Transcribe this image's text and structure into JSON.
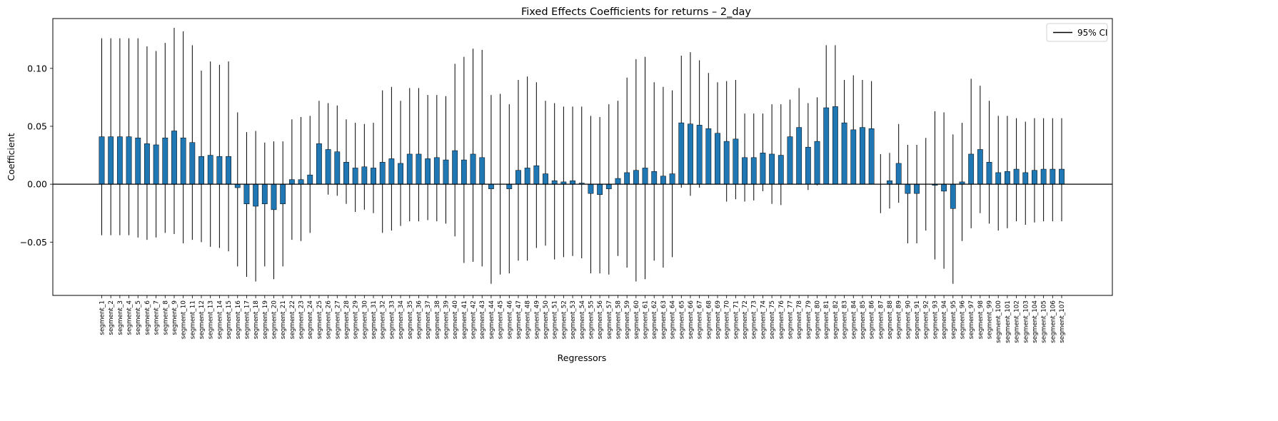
{
  "chart_data": {
    "type": "bar",
    "title": "Fixed Effects Coefficients for returns – 2_day",
    "xlabel": "Regressors",
    "ylabel": "Coefficient",
    "ylim": [
      -0.096,
      0.143
    ],
    "yticks": [
      -0.05,
      0.0,
      0.05,
      0.1
    ],
    "ytick_labels": [
      "−0.05",
      "0.00",
      "0.05",
      "0.10"
    ],
    "grid": false,
    "legend": {
      "placement": "top-right",
      "entries": [
        "95% CI"
      ]
    },
    "colors": {
      "bar": "#1f77b4",
      "errorbar": "#000000",
      "zero_line": "#000000"
    },
    "categories": [
      "segment_1",
      "segment_2",
      "segment_3",
      "segment_4",
      "segment_5",
      "segment_6",
      "segment_7",
      "segment_8",
      "segment_9",
      "segment_10",
      "segment_11",
      "segment_12",
      "segment_13",
      "segment_14",
      "segment_15",
      "segment_16",
      "segment_17",
      "segment_18",
      "segment_19",
      "segment_20",
      "segment_21",
      "segment_22",
      "segment_23",
      "segment_24",
      "segment_25",
      "segment_26",
      "segment_27",
      "segment_28",
      "segment_29",
      "segment_30",
      "segment_31",
      "segment_32",
      "segment_33",
      "segment_34",
      "segment_35",
      "segment_36",
      "segment_37",
      "segment_38",
      "segment_39",
      "segment_40",
      "segment_41",
      "segment_42",
      "segment_43",
      "segment_44",
      "segment_45",
      "segment_46",
      "segment_47",
      "segment_48",
      "segment_49",
      "segment_50",
      "segment_51",
      "segment_52",
      "segment_53",
      "segment_54",
      "segment_55",
      "segment_56",
      "segment_57",
      "segment_58",
      "segment_59",
      "segment_60",
      "segment_61",
      "segment_62",
      "segment_63",
      "segment_64",
      "segment_65",
      "segment_66",
      "segment_67",
      "segment_68",
      "segment_69",
      "segment_70",
      "segment_71",
      "segment_72",
      "segment_73",
      "segment_74",
      "segment_75",
      "segment_76",
      "segment_77",
      "segment_78",
      "segment_79",
      "segment_80",
      "segment_81",
      "segment_82",
      "segment_83",
      "segment_84",
      "segment_85",
      "segment_86",
      "segment_87",
      "segment_88",
      "segment_89",
      "segment_90",
      "segment_91",
      "segment_92",
      "segment_93",
      "segment_94",
      "segment_95",
      "segment_96",
      "segment_97",
      "segment_98",
      "segment_99",
      "segment_100",
      "segment_101",
      "segment_102",
      "segment_103",
      "segment_104",
      "segment_105",
      "segment_106",
      "segment_107"
    ],
    "values": [
      0.041,
      0.041,
      0.041,
      0.041,
      0.04,
      0.035,
      0.034,
      0.04,
      0.046,
      0.04,
      0.036,
      0.024,
      0.025,
      0.024,
      0.024,
      -0.003,
      -0.017,
      -0.019,
      -0.017,
      -0.022,
      -0.017,
      0.004,
      0.004,
      0.008,
      0.035,
      0.03,
      0.028,
      0.019,
      0.014,
      0.015,
      0.014,
      0.019,
      0.022,
      0.018,
      0.026,
      0.026,
      0.022,
      0.023,
      0.021,
      0.029,
      0.021,
      0.026,
      0.023,
      -0.004,
      0.0,
      -0.004,
      0.012,
      0.014,
      0.016,
      0.009,
      0.003,
      0.002,
      0.003,
      0.001,
      -0.008,
      -0.009,
      -0.004,
      0.005,
      0.01,
      0.012,
      0.014,
      0.011,
      0.007,
      0.009,
      0.053,
      0.052,
      0.051,
      0.048,
      0.044,
      0.037,
      0.039,
      0.023,
      0.023,
      0.027,
      0.026,
      0.025,
      0.041,
      0.049,
      0.032,
      0.037,
      0.066,
      0.067,
      0.053,
      0.047,
      0.049,
      0.048,
      0.0,
      0.003,
      0.018,
      -0.008,
      -0.008,
      0.0,
      -0.001,
      -0.006,
      -0.021,
      0.002,
      0.026,
      0.03,
      0.019,
      0.01,
      0.011,
      0.013,
      0.01,
      0.012,
      0.013,
      0.013,
      0.013
    ],
    "ci_lower": [
      -0.044,
      -0.044,
      -0.044,
      -0.044,
      -0.046,
      -0.048,
      -0.046,
      -0.042,
      -0.043,
      -0.051,
      -0.048,
      -0.05,
      -0.054,
      -0.055,
      -0.058,
      -0.071,
      -0.08,
      -0.084,
      -0.071,
      -0.082,
      -0.071,
      -0.048,
      -0.049,
      -0.042,
      0.0,
      -0.009,
      -0.01,
      -0.017,
      -0.024,
      -0.022,
      -0.025,
      -0.042,
      -0.04,
      -0.036,
      -0.032,
      -0.032,
      -0.031,
      -0.032,
      -0.034,
      -0.045,
      -0.068,
      -0.067,
      -0.071,
      -0.086,
      -0.078,
      -0.077,
      -0.066,
      -0.066,
      -0.055,
      -0.053,
      -0.065,
      -0.063,
      -0.062,
      -0.064,
      -0.077,
      -0.077,
      -0.078,
      -0.062,
      -0.072,
      -0.084,
      -0.082,
      -0.066,
      -0.072,
      -0.063,
      -0.003,
      -0.01,
      -0.003,
      0.0,
      0.001,
      -0.015,
      -0.013,
      -0.015,
      -0.014,
      -0.006,
      -0.017,
      -0.018,
      0.008,
      0.014,
      -0.005,
      -0.001,
      0.012,
      0.014,
      0.017,
      0.0,
      0.008,
      0.007,
      -0.025,
      -0.021,
      -0.016,
      -0.051,
      -0.051,
      -0.04,
      -0.065,
      -0.073,
      -0.086,
      -0.049,
      -0.038,
      -0.025,
      -0.034,
      -0.04,
      -0.038,
      -0.032,
      -0.035,
      -0.033,
      -0.032,
      -0.032,
      -0.032
    ],
    "ci_upper": [
      0.126,
      0.126,
      0.126,
      0.126,
      0.126,
      0.119,
      0.115,
      0.122,
      0.135,
      0.132,
      0.12,
      0.098,
      0.106,
      0.103,
      0.106,
      0.062,
      0.045,
      0.046,
      0.036,
      0.037,
      0.037,
      0.056,
      0.058,
      0.059,
      0.072,
      0.07,
      0.068,
      0.056,
      0.053,
      0.052,
      0.053,
      0.081,
      0.084,
      0.072,
      0.083,
      0.083,
      0.077,
      0.077,
      0.076,
      0.104,
      0.11,
      0.117,
      0.116,
      0.077,
      0.078,
      0.069,
      0.09,
      0.093,
      0.088,
      0.072,
      0.07,
      0.067,
      0.067,
      0.067,
      0.059,
      0.058,
      0.069,
      0.072,
      0.092,
      0.108,
      0.11,
      0.088,
      0.084,
      0.081,
      0.111,
      0.114,
      0.107,
      0.096,
      0.088,
      0.089,
      0.09,
      0.061,
      0.061,
      0.061,
      0.069,
      0.069,
      0.073,
      0.083,
      0.07,
      0.075,
      0.12,
      0.12,
      0.09,
      0.094,
      0.09,
      0.089,
      0.026,
      0.027,
      0.052,
      0.034,
      0.034,
      0.04,
      0.063,
      0.062,
      0.043,
      0.053,
      0.091,
      0.085,
      0.072,
      0.059,
      0.059,
      0.057,
      0.054,
      0.057,
      0.057,
      0.057,
      0.057
    ]
  }
}
